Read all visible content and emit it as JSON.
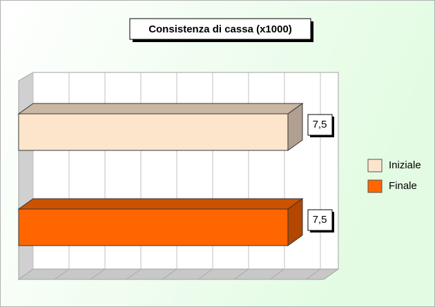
{
  "chart_data": {
    "type": "bar",
    "orientation": "horizontal",
    "title": "Consistenza di cassa (x1000)",
    "series": [
      {
        "name": "Iniziale",
        "color": "#fde5cc",
        "values": [
          7.5
        ],
        "value_labels": [
          "7,5"
        ]
      },
      {
        "name": "Finale",
        "color": "#ff6600",
        "values": [
          7.5
        ],
        "value_labels": [
          "7,5"
        ]
      }
    ],
    "xlim": [
      0,
      8.5
    ],
    "xticks": [
      0,
      1,
      2,
      3,
      4,
      5,
      6,
      7,
      8
    ],
    "grid": true,
    "legend": "right"
  }
}
